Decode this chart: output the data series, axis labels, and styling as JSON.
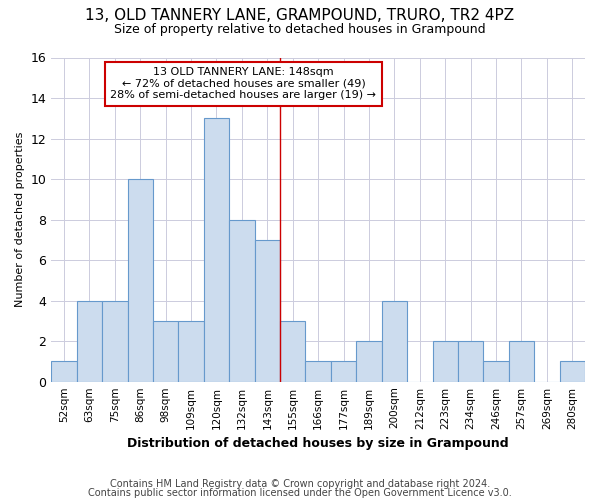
{
  "title_line1": "13, OLD TANNERY LANE, GRAMPOUND, TRURO, TR2 4PZ",
  "title_line2": "Size of property relative to detached houses in Grampound",
  "xlabel": "Distribution of detached houses by size in Grampound",
  "ylabel": "Number of detached properties",
  "footnote1": "Contains HM Land Registry data © Crown copyright and database right 2024.",
  "footnote2": "Contains public sector information licensed under the Open Government Licence v3.0.",
  "categories": [
    "52sqm",
    "63sqm",
    "75sqm",
    "86sqm",
    "98sqm",
    "109sqm",
    "120sqm",
    "132sqm",
    "143sqm",
    "155sqm",
    "166sqm",
    "177sqm",
    "189sqm",
    "200sqm",
    "212sqm",
    "223sqm",
    "234sqm",
    "246sqm",
    "257sqm",
    "269sqm",
    "280sqm"
  ],
  "values": [
    1,
    4,
    4,
    10,
    3,
    3,
    13,
    8,
    7,
    3,
    1,
    1,
    2,
    4,
    0,
    2,
    2,
    1,
    2,
    0,
    1
  ],
  "bar_color": "#ccdcee",
  "bar_edge_color": "#6699cc",
  "annotation_text_line1": "13 OLD TANNERY LANE: 148sqm",
  "annotation_text_line2": "← 72% of detached houses are smaller (49)",
  "annotation_text_line3": "28% of semi-detached houses are larger (19) →",
  "annotation_box_color": "#ffffff",
  "annotation_box_edge": "#cc0000",
  "vline_color": "#cc0000",
  "grid_color": "#ccccdd",
  "background_color": "#ffffff",
  "ylim": [
    0,
    16
  ],
  "yticks": [
    0,
    2,
    4,
    6,
    8,
    10,
    12,
    14,
    16
  ],
  "vline_x": 8.5
}
